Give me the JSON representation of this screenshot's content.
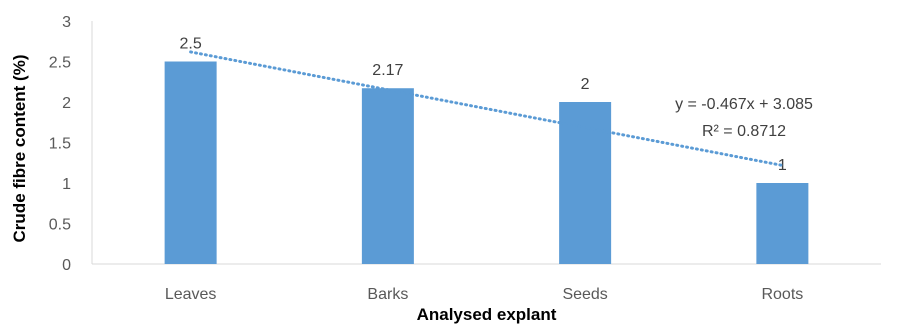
{
  "chart_data": {
    "type": "bar",
    "categories": [
      "Leaves",
      "Barks",
      "Seeds",
      "Roots"
    ],
    "values": [
      2.5,
      2.17,
      2,
      1
    ],
    "data_labels": [
      "2.5",
      "2.17",
      "2",
      "1"
    ],
    "xlabel": "Analysed explant",
    "ylabel": "Crude fibre content (%)",
    "ylim": [
      0,
      3
    ],
    "yticks": [
      "0",
      "0.5",
      "1",
      "1.5",
      "2",
      "2.5",
      "3"
    ],
    "grid": false,
    "legend": "none",
    "bar_color": "#5B9BD5",
    "trendline": {
      "type": "linear",
      "slope": -0.467,
      "intercept": 3.085,
      "equation": "y = -0.467x + 3.085",
      "r_squared": "R² = 0.8712",
      "color": "#5B9BD5",
      "style": "dotted"
    }
  }
}
